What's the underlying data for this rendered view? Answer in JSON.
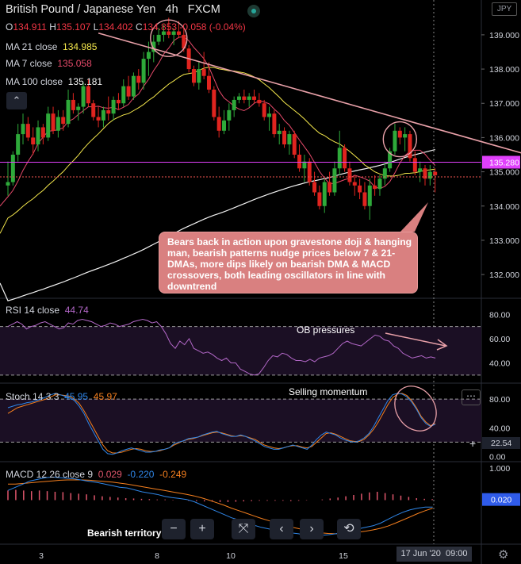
{
  "header": {
    "symbol": "British Pound / Japanese Yen",
    "interval": "4h",
    "exchange": "FXCM",
    "open_label": "O",
    "open": "134.911",
    "high_label": "H",
    "high": "135.107",
    "low_label": "L",
    "low": "134.402",
    "close_label": "C",
    "close": "134.853",
    "change": "-0.058 (-0.04%)",
    "currency_badge": "JPY"
  },
  "legend": {
    "ma21_label": "MA 21 close",
    "ma21_value": "134.985",
    "ma7_label": "MA 7 close",
    "ma7_value": "135.058",
    "ma100_label": "MA 100 close",
    "ma100_value": "135.181"
  },
  "annotation": "Bears back in action upon gravestone doji & hanging man, bearish patterns nudge prices below 7 & 21-DMAs, more dips likely on bearish DMA & MACD crossovers, both leading oscillators in line with downtrend",
  "rsi_panel": {
    "label": "RSI 14 close",
    "value": "44.74",
    "note": "OB pressures"
  },
  "stoch_panel": {
    "label": "Stoch 14 3 3",
    "k_value": "45.95",
    "d_value": "45.97",
    "note": "Selling momentum",
    "last_label": "22.54"
  },
  "macd_panel": {
    "label": "MACD 12 26 close 9",
    "hist_value": "0.029",
    "macd_value": "-0.220",
    "signal_value": "-0.249",
    "note": "Bearish territory",
    "last_label": "0.020"
  },
  "time_axis": {
    "ticks": [
      "3",
      "8",
      "10",
      "15"
    ],
    "cursor_label": "17 Jun '20",
    "cursor_time": "09:00"
  },
  "controls": {
    "zoom_out": "−",
    "zoom_in": "+",
    "reset": "⤧",
    "left": "‹",
    "right": "›",
    "refresh": "⟲"
  },
  "colors": {
    "up": "#2eaa3a",
    "down": "#e0241f",
    "ma21": "#f5e84c",
    "ma7": "#e54a6a",
    "ma100": "#f2f2f2",
    "rsi": "#b267c7",
    "stoch_k": "#2f86e8",
    "stoch_d": "#f57f1e",
    "macd": "#2f86e8",
    "signal": "#f57f1e",
    "hist": "#e0566c",
    "annot": "#d98080",
    "price_line": "#e040fb"
  },
  "chart_data": [
    {
      "type": "candlestick",
      "title": "British Pound / Japanese Yen 4h FXCM",
      "ylim": [
        131.4,
        139.6
      ],
      "y_ticks": [
        132.0,
        133.0,
        134.0,
        135.0,
        136.0,
        137.0,
        138.0,
        139.0
      ],
      "price_marker": 135.28,
      "dotted_line": 134.85,
      "trendline": [
        [
          18,
          139.05
        ],
        [
          113,
          135.1
        ]
      ],
      "candles": [
        [
          134.6,
          135.3,
          134.3,
          134.7
        ],
        [
          134.7,
          135.6,
          134.6,
          135.5
        ],
        [
          135.5,
          136.4,
          135.3,
          136.1
        ],
        [
          136.1,
          136.7,
          135.8,
          136.4
        ],
        [
          136.4,
          136.6,
          135.9,
          136.0
        ],
        [
          136.0,
          136.3,
          135.5,
          135.8
        ],
        [
          135.8,
          136.5,
          135.6,
          136.3
        ],
        [
          136.3,
          136.4,
          135.8,
          136.0
        ],
        [
          136.0,
          136.9,
          135.9,
          136.7
        ],
        [
          136.7,
          136.9,
          136.1,
          136.2
        ],
        [
          136.2,
          136.8,
          136.0,
          136.6
        ],
        [
          136.6,
          136.8,
          136.2,
          136.4
        ],
        [
          136.4,
          137.4,
          136.3,
          137.1
        ],
        [
          137.1,
          137.3,
          136.7,
          136.8
        ],
        [
          136.8,
          137.0,
          136.5,
          136.9
        ],
        [
          136.9,
          137.6,
          136.7,
          137.5
        ],
        [
          137.5,
          137.7,
          136.9,
          137.0
        ],
        [
          137.0,
          137.1,
          136.5,
          136.6
        ],
        [
          136.6,
          136.9,
          136.3,
          136.5
        ],
        [
          136.5,
          136.9,
          136.3,
          136.8
        ],
        [
          136.8,
          137.2,
          136.5,
          136.7
        ],
        [
          136.7,
          137.2,
          136.5,
          137.1
        ],
        [
          137.1,
          137.3,
          136.8,
          137.0
        ],
        [
          137.0,
          137.7,
          136.9,
          137.5
        ],
        [
          137.5,
          137.8,
          137.1,
          137.2
        ],
        [
          137.2,
          137.9,
          137.1,
          137.8
        ],
        [
          137.8,
          138.0,
          137.4,
          137.6
        ],
        [
          137.6,
          138.5,
          137.4,
          138.3
        ],
        [
          138.3,
          138.8,
          137.8,
          138.5
        ],
        [
          138.5,
          139.0,
          138.2,
          138.8
        ],
        [
          138.8,
          139.2,
          138.7,
          139.0
        ],
        [
          139.0,
          139.3,
          138.8,
          139.1
        ],
        [
          139.1,
          139.5,
          138.9,
          139.0
        ],
        [
          139.0,
          139.2,
          138.7,
          139.1
        ],
        [
          139.1,
          139.4,
          138.9,
          139.0
        ],
        [
          139.0,
          139.2,
          138.5,
          138.6
        ],
        [
          138.6,
          138.7,
          137.9,
          138.0
        ],
        [
          138.0,
          138.1,
          137.5,
          137.6
        ],
        [
          137.6,
          138.2,
          137.4,
          138.0
        ],
        [
          138.0,
          138.5,
          137.7,
          137.8
        ],
        [
          137.8,
          138.2,
          137.3,
          137.4
        ],
        [
          137.4,
          137.5,
          136.5,
          136.6
        ],
        [
          136.6,
          136.9,
          136.0,
          136.2
        ],
        [
          136.2,
          136.8,
          136.1,
          136.5
        ],
        [
          136.5,
          137.0,
          136.2,
          136.8
        ],
        [
          136.8,
          137.2,
          136.6,
          137.1
        ],
        [
          137.1,
          137.3,
          137.0,
          137.2
        ],
        [
          137.2,
          137.4,
          137.0,
          137.1
        ],
        [
          137.1,
          137.3,
          136.9,
          137.2
        ],
        [
          137.2,
          137.4,
          137.0,
          137.1
        ],
        [
          137.1,
          137.3,
          136.9,
          137.0
        ],
        [
          137.0,
          137.1,
          136.5,
          136.6
        ],
        [
          136.6,
          136.9,
          136.2,
          136.7
        ],
        [
          136.7,
          136.8,
          136.0,
          136.1
        ],
        [
          136.1,
          136.4,
          135.8,
          136.2
        ],
        [
          136.2,
          136.3,
          135.7,
          135.8
        ],
        [
          135.8,
          136.2,
          135.5,
          136.1
        ],
        [
          136.1,
          136.2,
          135.4,
          135.5
        ],
        [
          135.5,
          135.8,
          135.0,
          135.1
        ],
        [
          135.1,
          135.5,
          134.7,
          135.3
        ],
        [
          135.3,
          135.4,
          134.6,
          134.7
        ],
        [
          134.7,
          135.0,
          134.3,
          134.4
        ],
        [
          134.4,
          134.6,
          133.9,
          134.0
        ],
        [
          134.0,
          134.8,
          133.8,
          134.7
        ],
        [
          134.7,
          135.0,
          134.3,
          134.4
        ],
        [
          134.4,
          135.3,
          134.3,
          135.1
        ],
        [
          135.1,
          136.2,
          134.9,
          135.7
        ],
        [
          135.7,
          135.8,
          135.0,
          135.1
        ],
        [
          135.1,
          135.3,
          134.6,
          134.7
        ],
        [
          134.7,
          134.9,
          134.3,
          134.6
        ],
        [
          134.6,
          134.8,
          134.2,
          134.4
        ],
        [
          134.4,
          134.7,
          133.9,
          134.0
        ],
        [
          134.0,
          134.8,
          133.6,
          134.6
        ],
        [
          134.6,
          134.9,
          134.3,
          134.5
        ],
        [
          134.5,
          134.9,
          134.3,
          134.8
        ],
        [
          134.8,
          135.3,
          134.6,
          135.1
        ],
        [
          135.1,
          135.7,
          135.0,
          135.6
        ],
        [
          135.6,
          136.4,
          135.5,
          136.2
        ],
        [
          136.2,
          136.3,
          135.8,
          136.0
        ],
        [
          136.0,
          136.3,
          135.6,
          136.1
        ],
        [
          136.1,
          136.2,
          135.3,
          135.4
        ],
        [
          135.4,
          135.6,
          134.9,
          135.0
        ],
        [
          135.0,
          135.3,
          134.7,
          135.1
        ],
        [
          135.1,
          135.2,
          134.6,
          134.8
        ],
        [
          134.8,
          135.2,
          134.6,
          135.0
        ],
        [
          135.0,
          135.1,
          134.4,
          134.9
        ]
      ]
    },
    {
      "type": "line",
      "title": "RSI 14 close",
      "ylim": [
        24,
        92
      ],
      "y_ticks": [
        40,
        60,
        80
      ],
      "levels": [
        70,
        30
      ],
      "values": [
        70,
        72,
        74,
        72,
        68,
        70,
        71,
        73,
        74,
        72,
        70,
        68,
        69,
        73,
        72,
        75,
        76,
        75,
        74,
        72,
        70,
        71,
        73,
        72,
        70,
        71,
        72,
        74,
        75,
        76,
        75,
        73,
        74,
        70,
        64,
        56,
        52,
        58,
        55,
        60,
        52,
        50,
        48,
        49,
        47,
        44,
        42,
        44,
        40,
        40,
        35,
        33,
        31,
        30,
        31,
        36,
        42,
        46,
        45,
        48,
        47,
        44,
        42,
        42,
        41,
        43,
        41,
        44,
        45,
        46,
        48,
        52,
        56,
        58,
        56,
        55,
        54,
        57,
        60,
        63,
        62,
        59,
        58,
        54,
        52,
        48,
        46,
        44,
        45,
        46,
        44,
        45,
        44
      ]
    },
    {
      "type": "line",
      "title": "Stoch 14 3 3",
      "ylim": [
        -5,
        100
      ],
      "y_ticks": [
        0,
        40,
        80
      ],
      "levels": [
        80,
        20
      ],
      "series": [
        {
          "values": [
            68,
            70,
            72,
            73,
            75,
            76,
            78,
            80,
            83,
            86,
            88,
            86,
            84,
            82,
            78,
            70,
            60,
            46,
            34,
            22,
            10,
            4,
            3,
            5,
            8,
            10,
            12,
            10,
            8,
            6,
            6,
            7,
            9,
            10,
            12,
            18,
            20,
            22,
            25,
            26,
            27,
            30,
            32,
            34,
            35,
            32,
            30,
            28,
            28,
            30,
            28,
            25,
            22,
            18,
            14,
            12,
            10,
            10,
            12,
            14,
            16,
            14,
            12,
            10,
            16,
            24,
            30,
            34,
            32,
            30,
            26,
            23,
            21,
            20,
            22,
            26,
            32,
            42,
            54,
            66,
            78,
            86,
            88,
            87,
            83,
            76,
            66,
            54,
            46,
            42,
            45
          ]
        },
        {
          "values": [
            60,
            64,
            68,
            70,
            72,
            74,
            76,
            78,
            80,
            83,
            86,
            86,
            85,
            84,
            80,
            74,
            64,
            52,
            40,
            28,
            16,
            8,
            5,
            5,
            6,
            8,
            10,
            11,
            10,
            8,
            7,
            7,
            8,
            10,
            12,
            16,
            19,
            22,
            24,
            25,
            27,
            29,
            31,
            33,
            34,
            33,
            31,
            29,
            28,
            29,
            28,
            26,
            24,
            20,
            16,
            14,
            12,
            11,
            12,
            14,
            15,
            15,
            13,
            12,
            14,
            20,
            26,
            32,
            33,
            31,
            28,
            25,
            22,
            21,
            21,
            24,
            30,
            38,
            48,
            60,
            72,
            82,
            87,
            88,
            85,
            78,
            68,
            56,
            48,
            43,
            46
          ]
        }
      ]
    },
    {
      "type": "line",
      "title": "MACD 12 26 close 9",
      "ylim": [
        -1.35,
        1.15
      ],
      "y_ticks": [
        0.0,
        1.0
      ],
      "series": [
        {
          "values": [
            0.3,
            0.4,
            0.5,
            0.6,
            0.65,
            0.7,
            0.72,
            0.7,
            0.68,
            0.66,
            0.62,
            0.58,
            0.55,
            0.5,
            0.45,
            0.4,
            0.38,
            0.32,
            0.26,
            0.22,
            0.18,
            0.12,
            0.08,
            0.05,
            0.02,
            -0.05,
            -0.15,
            -0.25,
            -0.35,
            -0.45,
            -0.55,
            -0.62,
            -0.7,
            -0.78,
            -0.85,
            -0.9,
            -0.95,
            -1.0,
            -1.02,
            -1.05,
            -1.1,
            -1.12,
            -1.1,
            -1.08,
            -1.05,
            -1.0,
            -0.95,
            -0.9,
            -0.85,
            -0.8,
            -0.72,
            -0.6,
            -0.48,
            -0.38,
            -0.3,
            -0.25,
            -0.22,
            -0.22
          ]
        },
        {
          "values": [
            0.5,
            0.5,
            0.52,
            0.54,
            0.56,
            0.58,
            0.6,
            0.62,
            0.63,
            0.63,
            0.63,
            0.62,
            0.6,
            0.58,
            0.56,
            0.53,
            0.5,
            0.46,
            0.42,
            0.38,
            0.34,
            0.3,
            0.26,
            0.22,
            0.18,
            0.13,
            0.07,
            0.0,
            -0.08,
            -0.16,
            -0.25,
            -0.33,
            -0.41,
            -0.49,
            -0.57,
            -0.64,
            -0.71,
            -0.78,
            -0.84,
            -0.89,
            -0.94,
            -0.99,
            -1.02,
            -1.04,
            -1.05,
            -1.05,
            -1.03,
            -1.0,
            -0.97,
            -0.93,
            -0.88,
            -0.81,
            -0.72,
            -0.62,
            -0.52,
            -0.42,
            -0.33,
            -0.25
          ]
        }
      ],
      "histogram": [
        0.3,
        0.32,
        0.3,
        0.28,
        0.3,
        0.28,
        0.26,
        0.25,
        0.22,
        0.2,
        0.18,
        0.15,
        0.12,
        0.1,
        0.08,
        0.06,
        0.05,
        0.04,
        0.03,
        0.02,
        0.02,
        0.01,
        0.0,
        -0.02,
        -0.03,
        -0.04,
        -0.05,
        -0.06,
        -0.06,
        -0.05,
        -0.04,
        -0.03,
        -0.02,
        -0.02,
        -0.02,
        -0.02,
        -0.03,
        -0.02,
        -0.01,
        0.0,
        0.02,
        0.05,
        0.08,
        0.12,
        0.16,
        0.2,
        0.24,
        0.26,
        0.22,
        0.18,
        0.14,
        0.1,
        0.06,
        0.04,
        0.03
      ]
    }
  ]
}
